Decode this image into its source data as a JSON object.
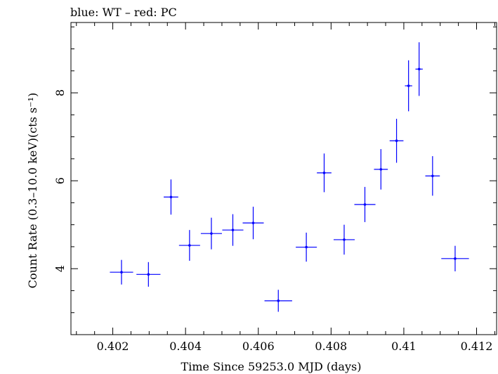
{
  "chart_data": {
    "type": "scatter",
    "title": "blue: WT – red: PC",
    "xlabel": "Time Since 59253.0 MJD (days)",
    "ylabel": "Count Rate (0.3–10.0 keV)(cts s⁻¹)",
    "xlim": [
      0.40085,
      0.41255
    ],
    "ylim": [
      2.5,
      9.6
    ],
    "xticks": [
      0.402,
      0.404,
      0.406,
      0.408,
      0.41,
      0.412
    ],
    "xtick_labels": [
      "0.402",
      "0.404",
      "0.406",
      "0.408",
      "0.41",
      "0.412"
    ],
    "yticks": [
      4,
      6,
      8
    ],
    "ytick_labels": [
      "4",
      "6",
      "8"
    ],
    "grid": false,
    "series": [
      {
        "color": "#0000ff",
        "points": [
          {
            "x": 0.40224,
            "xerr": 0.00032,
            "y": 3.92,
            "yerr": 0.28
          },
          {
            "x": 0.40298,
            "xerr": 0.00033,
            "y": 3.87,
            "yerr": 0.28
          },
          {
            "x": 0.4036,
            "xerr": 0.0002,
            "y": 5.63,
            "yerr": 0.4
          },
          {
            "x": 0.40411,
            "xerr": 0.00029,
            "y": 4.53,
            "yerr": 0.35
          },
          {
            "x": 0.40471,
            "xerr": 0.00029,
            "y": 4.8,
            "yerr": 0.36
          },
          {
            "x": 0.4053,
            "xerr": 0.00029,
            "y": 4.88,
            "yerr": 0.36
          },
          {
            "x": 0.40586,
            "xerr": 0.00029,
            "y": 5.04,
            "yerr": 0.37
          },
          {
            "x": 0.40655,
            "xerr": 0.00038,
            "y": 3.27,
            "yerr": 0.25
          },
          {
            "x": 0.40732,
            "xerr": 0.00029,
            "y": 4.49,
            "yerr": 0.33
          },
          {
            "x": 0.40781,
            "xerr": 0.0002,
            "y": 6.18,
            "yerr": 0.44
          },
          {
            "x": 0.40836,
            "xerr": 0.00029,
            "y": 4.66,
            "yerr": 0.34
          },
          {
            "x": 0.40893,
            "xerr": 0.00029,
            "y": 5.46,
            "yerr": 0.4
          },
          {
            "x": 0.40937,
            "xerr": 0.00019,
            "y": 6.26,
            "yerr": 0.46
          },
          {
            "x": 0.4098,
            "xerr": 0.00019,
            "y": 6.91,
            "yerr": 0.5
          },
          {
            "x": 0.41013,
            "xerr": 0.0001,
            "y": 8.16,
            "yerr": 0.58
          },
          {
            "x": 0.41042,
            "xerr": 0.0001,
            "y": 8.54,
            "yerr": 0.61
          },
          {
            "x": 0.41079,
            "xerr": 0.0002,
            "y": 6.11,
            "yerr": 0.45
          },
          {
            "x": 0.41141,
            "xerr": 0.00038,
            "y": 4.23,
            "yerr": 0.29
          }
        ]
      }
    ]
  }
}
